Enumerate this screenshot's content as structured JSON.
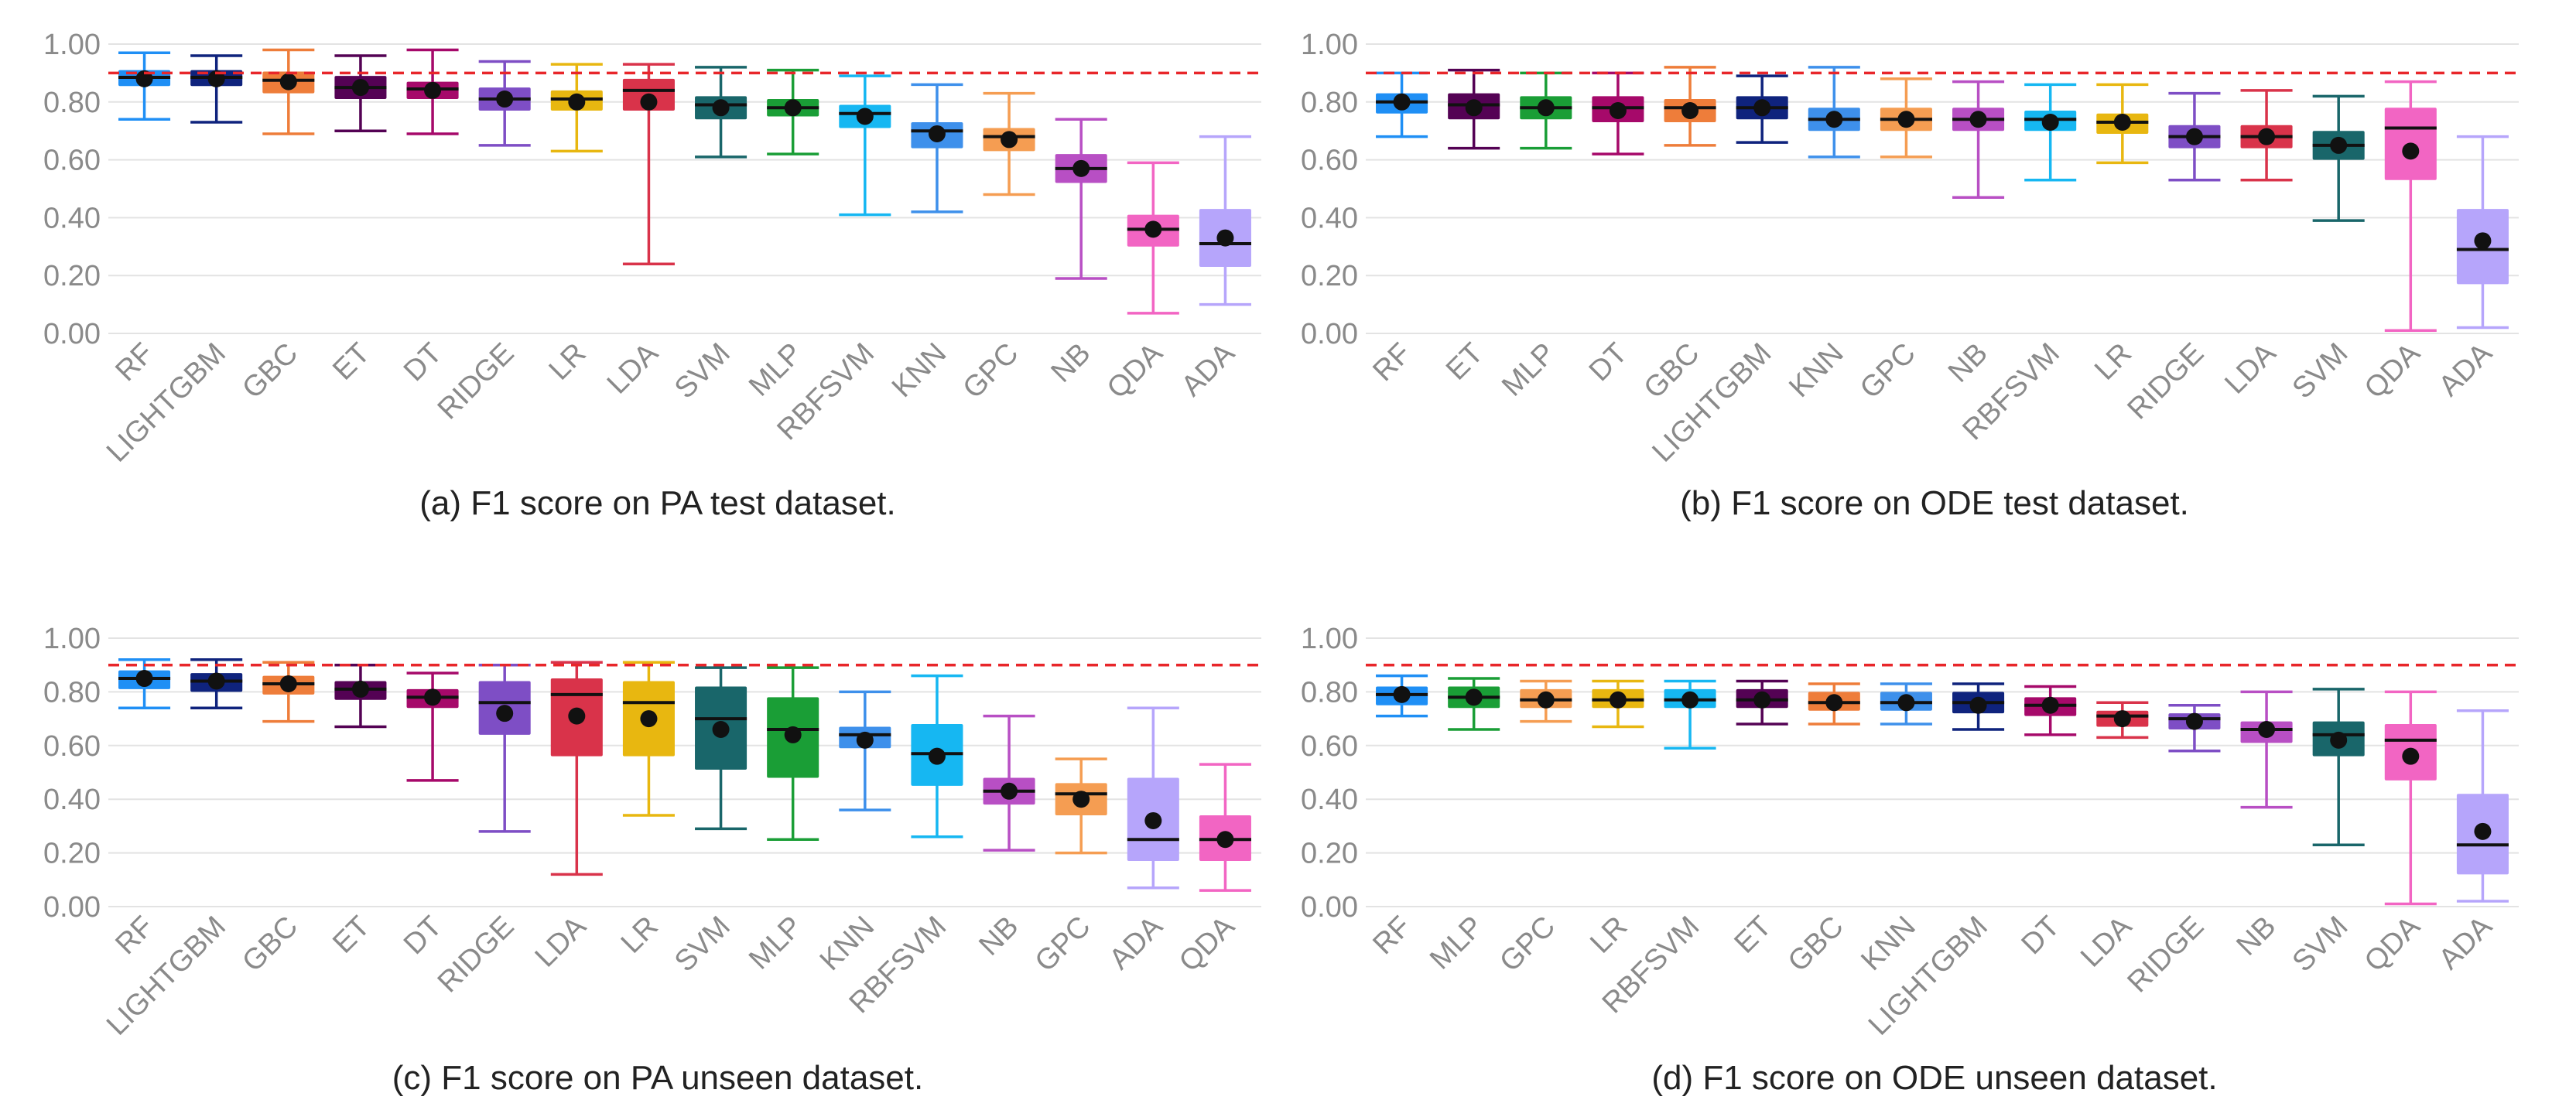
{
  "colors": {
    "RF": "#1f8ff5",
    "LIGHTGBM": "#0f237d",
    "GBC": "#ee7d3a",
    "ET": "#540254",
    "DT": "#a6096a",
    "RIDGE": "#7e4ec5",
    "LR": "#e8b710",
    "LDA": "#d9334a",
    "SVM": "#19666a",
    "MLP": "#1a9e36",
    "RBFSVM": "#16b7f2",
    "KNN": "#3e90eb",
    "GPC": "#f59d52",
    "NB": "#b84fc4",
    "QDA": "#f265c3",
    "ADA": "#b6a5fb",
    "mean_marker": "#111111",
    "reference_line": "#e8262a"
  },
  "chart_data": [
    {
      "id": "a",
      "type": "box",
      "caption": "(a) F1 score on PA test dataset.",
      "y_ticks": [
        "0.00",
        "0.20",
        "0.40",
        "0.60",
        "0.80",
        "1.00"
      ],
      "ylim": [
        0,
        1
      ],
      "reference_line": 0.9,
      "boxes": [
        {
          "name": "RF",
          "whislo": 0.74,
          "q1": 0.855,
          "med": 0.885,
          "q3": 0.91,
          "whishi": 0.97,
          "mean": 0.88
        },
        {
          "name": "LIGHTGBM",
          "whislo": 0.73,
          "q1": 0.855,
          "med": 0.885,
          "q3": 0.91,
          "whishi": 0.96,
          "mean": 0.88
        },
        {
          "name": "GBC",
          "whislo": 0.69,
          "q1": 0.83,
          "med": 0.875,
          "q3": 0.905,
          "whishi": 0.98,
          "mean": 0.87
        },
        {
          "name": "ET",
          "whislo": 0.7,
          "q1": 0.81,
          "med": 0.85,
          "q3": 0.89,
          "whishi": 0.96,
          "mean": 0.85
        },
        {
          "name": "DT",
          "whislo": 0.69,
          "q1": 0.81,
          "med": 0.845,
          "q3": 0.87,
          "whishi": 0.98,
          "mean": 0.84
        },
        {
          "name": "RIDGE",
          "whislo": 0.65,
          "q1": 0.77,
          "med": 0.81,
          "q3": 0.85,
          "whishi": 0.94,
          "mean": 0.81
        },
        {
          "name": "LR",
          "whislo": 0.63,
          "q1": 0.77,
          "med": 0.81,
          "q3": 0.84,
          "whishi": 0.93,
          "mean": 0.8
        },
        {
          "name": "LDA",
          "whislo": 0.24,
          "q1": 0.77,
          "med": 0.84,
          "q3": 0.88,
          "whishi": 0.93,
          "mean": 0.8
        },
        {
          "name": "SVM",
          "whislo": 0.61,
          "q1": 0.74,
          "med": 0.79,
          "q3": 0.82,
          "whishi": 0.92,
          "mean": 0.78
        },
        {
          "name": "MLP",
          "whislo": 0.62,
          "q1": 0.75,
          "med": 0.78,
          "q3": 0.81,
          "whishi": 0.91,
          "mean": 0.78
        },
        {
          "name": "RBFSVM",
          "whislo": 0.41,
          "q1": 0.71,
          "med": 0.76,
          "q3": 0.79,
          "whishi": 0.89,
          "mean": 0.75
        },
        {
          "name": "KNN",
          "whislo": 0.42,
          "q1": 0.64,
          "med": 0.7,
          "q3": 0.73,
          "whishi": 0.86,
          "mean": 0.69
        },
        {
          "name": "GPC",
          "whislo": 0.48,
          "q1": 0.63,
          "med": 0.68,
          "q3": 0.71,
          "whishi": 0.83,
          "mean": 0.67
        },
        {
          "name": "NB",
          "whislo": 0.19,
          "q1": 0.52,
          "med": 0.57,
          "q3": 0.62,
          "whishi": 0.74,
          "mean": 0.57
        },
        {
          "name": "QDA",
          "whislo": 0.07,
          "q1": 0.3,
          "med": 0.36,
          "q3": 0.41,
          "whishi": 0.59,
          "mean": 0.36
        },
        {
          "name": "ADA",
          "whislo": 0.1,
          "q1": 0.23,
          "med": 0.31,
          "q3": 0.43,
          "whishi": 0.68,
          "mean": 0.33
        }
      ]
    },
    {
      "id": "b",
      "type": "box",
      "caption": "(b) F1 score on ODE test dataset.",
      "y_ticks": [
        "0.00",
        "0.20",
        "0.40",
        "0.60",
        "0.80",
        "1.00"
      ],
      "ylim": [
        0,
        1
      ],
      "reference_line": 0.9,
      "boxes": [
        {
          "name": "RF",
          "whislo": 0.68,
          "q1": 0.76,
          "med": 0.8,
          "q3": 0.83,
          "whishi": 0.9,
          "mean": 0.8
        },
        {
          "name": "ET",
          "whislo": 0.64,
          "q1": 0.74,
          "med": 0.79,
          "q3": 0.83,
          "whishi": 0.91,
          "mean": 0.78
        },
        {
          "name": "MLP",
          "whislo": 0.64,
          "q1": 0.74,
          "med": 0.78,
          "q3": 0.82,
          "whishi": 0.9,
          "mean": 0.78
        },
        {
          "name": "DT",
          "whislo": 0.62,
          "q1": 0.73,
          "med": 0.78,
          "q3": 0.82,
          "whishi": 0.9,
          "mean": 0.77
        },
        {
          "name": "GBC",
          "whislo": 0.65,
          "q1": 0.73,
          "med": 0.78,
          "q3": 0.81,
          "whishi": 0.92,
          "mean": 0.77
        },
        {
          "name": "LIGHTGBM",
          "whislo": 0.66,
          "q1": 0.74,
          "med": 0.78,
          "q3": 0.82,
          "whishi": 0.89,
          "mean": 0.78
        },
        {
          "name": "KNN",
          "whislo": 0.61,
          "q1": 0.7,
          "med": 0.74,
          "q3": 0.78,
          "whishi": 0.92,
          "mean": 0.74
        },
        {
          "name": "GPC",
          "whislo": 0.61,
          "q1": 0.7,
          "med": 0.74,
          "q3": 0.78,
          "whishi": 0.88,
          "mean": 0.74
        },
        {
          "name": "NB",
          "whislo": 0.47,
          "q1": 0.7,
          "med": 0.74,
          "q3": 0.78,
          "whishi": 0.87,
          "mean": 0.74
        },
        {
          "name": "RBFSVM",
          "whislo": 0.53,
          "q1": 0.7,
          "med": 0.74,
          "q3": 0.77,
          "whishi": 0.86,
          "mean": 0.73
        },
        {
          "name": "LR",
          "whislo": 0.59,
          "q1": 0.69,
          "med": 0.73,
          "q3": 0.76,
          "whishi": 0.86,
          "mean": 0.73
        },
        {
          "name": "RIDGE",
          "whislo": 0.53,
          "q1": 0.64,
          "med": 0.68,
          "q3": 0.72,
          "whishi": 0.83,
          "mean": 0.68
        },
        {
          "name": "LDA",
          "whislo": 0.53,
          "q1": 0.64,
          "med": 0.68,
          "q3": 0.72,
          "whishi": 0.84,
          "mean": 0.68
        },
        {
          "name": "SVM",
          "whislo": 0.39,
          "q1": 0.6,
          "med": 0.65,
          "q3": 0.7,
          "whishi": 0.82,
          "mean": 0.65
        },
        {
          "name": "QDA",
          "whislo": 0.01,
          "q1": 0.53,
          "med": 0.71,
          "q3": 0.78,
          "whishi": 0.87,
          "mean": 0.63
        },
        {
          "name": "ADA",
          "whislo": 0.02,
          "q1": 0.17,
          "med": 0.29,
          "q3": 0.43,
          "whishi": 0.68,
          "mean": 0.32
        }
      ]
    },
    {
      "id": "c",
      "type": "box",
      "caption": "(c) F1 score on PA unseen dataset.",
      "y_ticks": [
        "0.00",
        "0.20",
        "0.40",
        "0.60",
        "0.80",
        "1.00"
      ],
      "ylim": [
        0,
        1
      ],
      "reference_line": 0.9,
      "boxes": [
        {
          "name": "RF",
          "whislo": 0.74,
          "q1": 0.81,
          "med": 0.85,
          "q3": 0.88,
          "whishi": 0.92,
          "mean": 0.85
        },
        {
          "name": "LIGHTGBM",
          "whislo": 0.74,
          "q1": 0.8,
          "med": 0.84,
          "q3": 0.87,
          "whishi": 0.92,
          "mean": 0.84
        },
        {
          "name": "GBC",
          "whislo": 0.69,
          "q1": 0.79,
          "med": 0.83,
          "q3": 0.86,
          "whishi": 0.91,
          "mean": 0.83
        },
        {
          "name": "ET",
          "whislo": 0.67,
          "q1": 0.77,
          "med": 0.81,
          "q3": 0.84,
          "whishi": 0.9,
          "mean": 0.81
        },
        {
          "name": "DT",
          "whislo": 0.47,
          "q1": 0.74,
          "med": 0.78,
          "q3": 0.81,
          "whishi": 0.87,
          "mean": 0.78
        },
        {
          "name": "RIDGE",
          "whislo": 0.28,
          "q1": 0.64,
          "med": 0.76,
          "q3": 0.84,
          "whishi": 0.9,
          "mean": 0.72
        },
        {
          "name": "LDA",
          "whislo": 0.12,
          "q1": 0.56,
          "med": 0.79,
          "q3": 0.85,
          "whishi": 0.91,
          "mean": 0.71
        },
        {
          "name": "LR",
          "whislo": 0.34,
          "q1": 0.56,
          "med": 0.76,
          "q3": 0.84,
          "whishi": 0.91,
          "mean": 0.7
        },
        {
          "name": "SVM",
          "whislo": 0.29,
          "q1": 0.51,
          "med": 0.7,
          "q3": 0.82,
          "whishi": 0.89,
          "mean": 0.66
        },
        {
          "name": "MLP",
          "whislo": 0.25,
          "q1": 0.48,
          "med": 0.66,
          "q3": 0.78,
          "whishi": 0.89,
          "mean": 0.64
        },
        {
          "name": "KNN",
          "whislo": 0.36,
          "q1": 0.59,
          "med": 0.64,
          "q3": 0.67,
          "whishi": 0.8,
          "mean": 0.62
        },
        {
          "name": "RBFSVM",
          "whislo": 0.26,
          "q1": 0.45,
          "med": 0.57,
          "q3": 0.68,
          "whishi": 0.86,
          "mean": 0.56
        },
        {
          "name": "NB",
          "whislo": 0.21,
          "q1": 0.38,
          "med": 0.43,
          "q3": 0.48,
          "whishi": 0.71,
          "mean": 0.43
        },
        {
          "name": "GPC",
          "whislo": 0.2,
          "q1": 0.34,
          "med": 0.42,
          "q3": 0.46,
          "whishi": 0.55,
          "mean": 0.4
        },
        {
          "name": "ADA",
          "whislo": 0.07,
          "q1": 0.17,
          "med": 0.25,
          "q3": 0.48,
          "whishi": 0.74,
          "mean": 0.32
        },
        {
          "name": "QDA",
          "whislo": 0.06,
          "q1": 0.17,
          "med": 0.25,
          "q3": 0.34,
          "whishi": 0.53,
          "mean": 0.25
        }
      ]
    },
    {
      "id": "d",
      "type": "box",
      "caption": "(d) F1 score on ODE unseen dataset.",
      "y_ticks": [
        "0.00",
        "0.20",
        "0.40",
        "0.60",
        "0.80",
        "1.00"
      ],
      "ylim": [
        0,
        1
      ],
      "reference_line": 0.9,
      "boxes": [
        {
          "name": "RF",
          "whislo": 0.71,
          "q1": 0.75,
          "med": 0.79,
          "q3": 0.82,
          "whishi": 0.86,
          "mean": 0.79
        },
        {
          "name": "MLP",
          "whislo": 0.66,
          "q1": 0.74,
          "med": 0.78,
          "q3": 0.82,
          "whishi": 0.85,
          "mean": 0.78
        },
        {
          "name": "GPC",
          "whislo": 0.69,
          "q1": 0.74,
          "med": 0.77,
          "q3": 0.81,
          "whishi": 0.84,
          "mean": 0.77
        },
        {
          "name": "LR",
          "whislo": 0.67,
          "q1": 0.74,
          "med": 0.77,
          "q3": 0.81,
          "whishi": 0.84,
          "mean": 0.77
        },
        {
          "name": "RBFSVM",
          "whislo": 0.59,
          "q1": 0.74,
          "med": 0.77,
          "q3": 0.81,
          "whishi": 0.84,
          "mean": 0.77
        },
        {
          "name": "ET",
          "whislo": 0.68,
          "q1": 0.74,
          "med": 0.77,
          "q3": 0.81,
          "whishi": 0.84,
          "mean": 0.77
        },
        {
          "name": "GBC",
          "whislo": 0.68,
          "q1": 0.73,
          "med": 0.76,
          "q3": 0.8,
          "whishi": 0.83,
          "mean": 0.76
        },
        {
          "name": "KNN",
          "whislo": 0.68,
          "q1": 0.73,
          "med": 0.76,
          "q3": 0.8,
          "whishi": 0.83,
          "mean": 0.76
        },
        {
          "name": "LIGHTGBM",
          "whislo": 0.66,
          "q1": 0.72,
          "med": 0.76,
          "q3": 0.8,
          "whishi": 0.83,
          "mean": 0.75
        },
        {
          "name": "DT",
          "whislo": 0.64,
          "q1": 0.71,
          "med": 0.75,
          "q3": 0.78,
          "whishi": 0.82,
          "mean": 0.75
        },
        {
          "name": "LDA",
          "whislo": 0.63,
          "q1": 0.67,
          "med": 0.71,
          "q3": 0.73,
          "whishi": 0.76,
          "mean": 0.7
        },
        {
          "name": "RIDGE",
          "whislo": 0.58,
          "q1": 0.66,
          "med": 0.7,
          "q3": 0.72,
          "whishi": 0.75,
          "mean": 0.69
        },
        {
          "name": "NB",
          "whislo": 0.37,
          "q1": 0.61,
          "med": 0.66,
          "q3": 0.69,
          "whishi": 0.8,
          "mean": 0.66
        },
        {
          "name": "SVM",
          "whislo": 0.23,
          "q1": 0.56,
          "med": 0.64,
          "q3": 0.69,
          "whishi": 0.81,
          "mean": 0.62
        },
        {
          "name": "QDA",
          "whislo": 0.01,
          "q1": 0.47,
          "med": 0.62,
          "q3": 0.68,
          "whishi": 0.8,
          "mean": 0.56
        },
        {
          "name": "ADA",
          "whislo": 0.02,
          "q1": 0.12,
          "med": 0.23,
          "q3": 0.42,
          "whishi": 0.73,
          "mean": 0.28
        }
      ]
    }
  ]
}
